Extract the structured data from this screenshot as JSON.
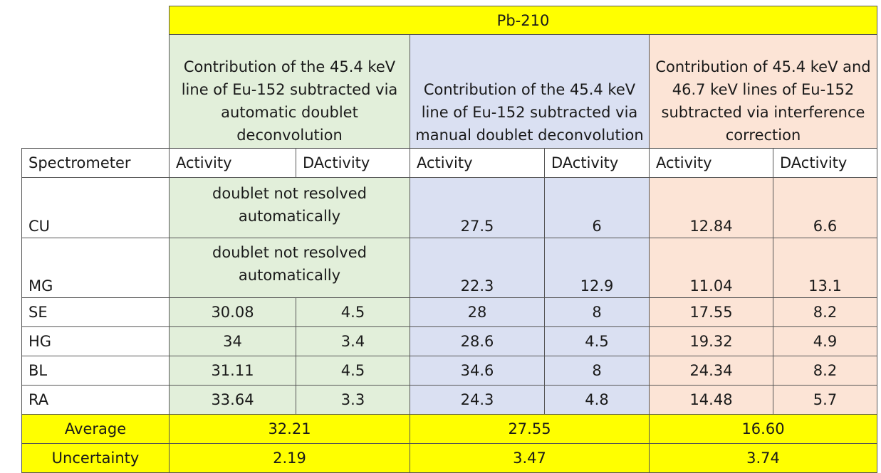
{
  "table": {
    "title": "Pb-210",
    "groups": [
      "Contribution of the 45.4 keV line of Eu-152 subtracted via automatic doublet deconvolution",
      "Contribution of the 45.4 keV line of Eu-152 subtracted via manual doublet deconvolution",
      "Contribution of 45.4 keV and 46.7 keV  lines of Eu-152 subtracted via interference correction"
    ],
    "spectrometer_header": "Spectrometer",
    "activity_header": "Activity",
    "dactivity_header": "DActivity",
    "not_resolved_text": "doublet not resolved automatically",
    "rows": [
      {
        "name": "CU",
        "a1": "doublet not resolved automatically",
        "a2": "27.5",
        "d2": "6",
        "a3": "12.84",
        "d3": "6.6"
      },
      {
        "name": "MG",
        "a1": "doublet not resolved automatically",
        "a2": "22.3",
        "d2": "12.9",
        "a3": "11.04",
        "d3": "13.1"
      },
      {
        "name": "SE",
        "a1": "30.08",
        "d1": "4.5",
        "a2": "28",
        "d2": "8",
        "a3": "17.55",
        "d3": "8.2"
      },
      {
        "name": "HG",
        "a1": "34",
        "d1": "3.4",
        "a2": "28.6",
        "d2": "4.5",
        "a3": "19.32",
        "d3": "4.9"
      },
      {
        "name": "BL",
        "a1": "31.11",
        "d1": "4.5",
        "a2": "34.6",
        "d2": "8",
        "a3": "24.34",
        "d3": "8.2"
      },
      {
        "name": "RA",
        "a1": "33.64",
        "d1": "3.3",
        "a2": "24.3",
        "d2": "4.8",
        "a3": "14.48",
        "d3": "5.7"
      }
    ],
    "summary": [
      {
        "label": "Average",
        "v1": "32.21",
        "v2": "27.55",
        "v3": "16.60"
      },
      {
        "label": "Uncertainty",
        "v1": "2.19",
        "v2": "3.47",
        "v3": "3.74"
      }
    ]
  }
}
